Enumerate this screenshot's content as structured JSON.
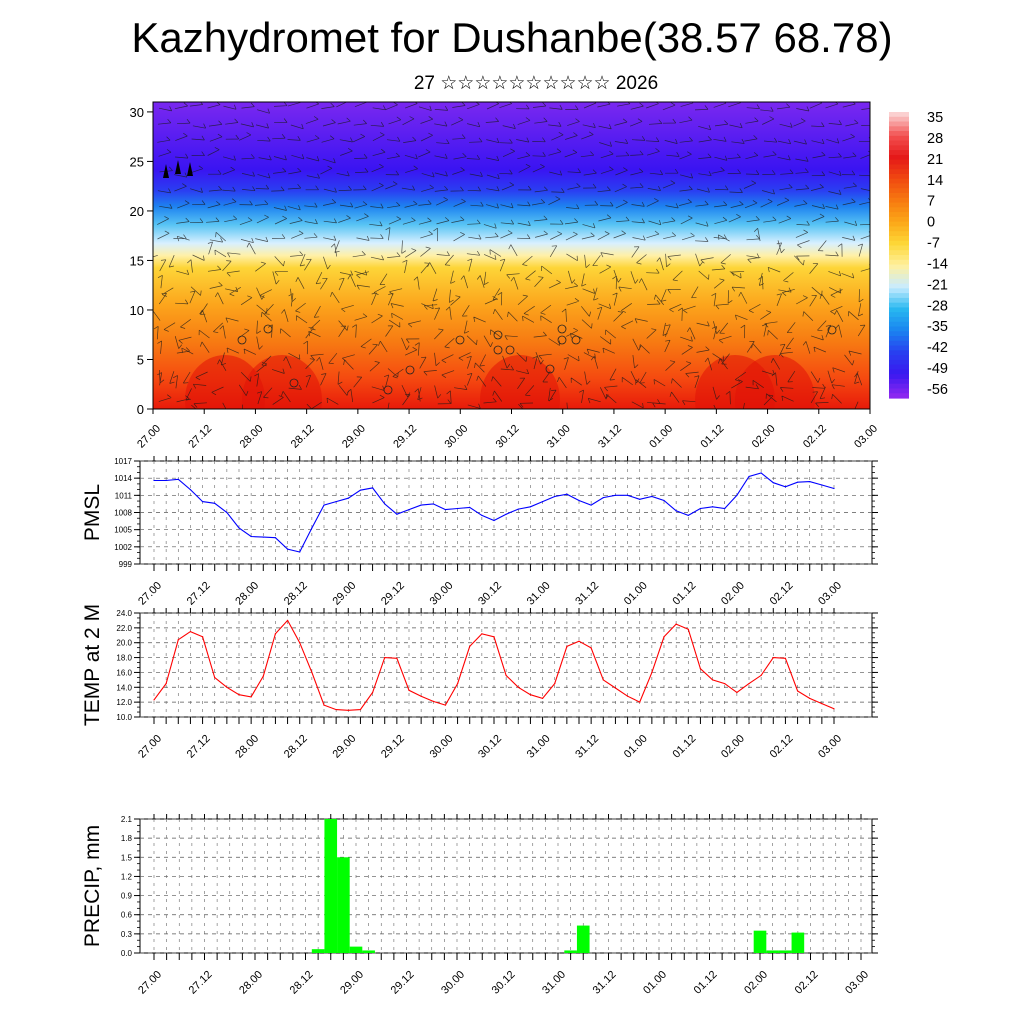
{
  "title": "Kazhydromet for Dushanbe(38.57 68.78)",
  "subtitle": "27 ☆☆☆☆☆☆☆☆☆☆ 2026",
  "time_ticks": [
    "27.00",
    "27.12",
    "28.00",
    "28.12",
    "29.00",
    "29.12",
    "30.00",
    "30.12",
    "31.00",
    "31.12",
    "01.00",
    "01.12",
    "02.00",
    "02.12",
    "03.00"
  ],
  "chart_data": [
    {
      "type": "heatmap",
      "name": "cross-section",
      "xlabel": "",
      "ylabel": "",
      "y_ticks": [
        "0",
        "5",
        "10",
        "15",
        "20",
        "25",
        "30"
      ],
      "ylim": [
        0,
        31
      ],
      "colorbar_labels": [
        "35",
        "28",
        "21",
        "14",
        "7",
        "0",
        "-7",
        "-14",
        "-21",
        "-28",
        "-35",
        "-42",
        "-49",
        "-56"
      ],
      "colorbar_colors": [
        "#fbd0d0",
        "#f25050",
        "#e51818",
        "#f04a10",
        "#f77a10",
        "#fca818",
        "#fdd838",
        "#fff0a0",
        "#c8ecff",
        "#28b8f0",
        "#1a84f0",
        "#2840f0",
        "#3a18f0",
        "#8a28f0"
      ]
    },
    {
      "type": "line",
      "name": "PMSL",
      "ylabel": "PMSL",
      "y_ticks": [
        "1017",
        "1014",
        "1011",
        "1008",
        "1005",
        "1002",
        "999"
      ],
      "ylim": [
        999,
        1017
      ],
      "color": "#0000ff",
      "values": [
        1013.6,
        1013.6,
        1013.8,
        1012,
        1009.9,
        1009.6,
        1008,
        1005.3,
        1003.8,
        1003.7,
        1003.6,
        1001.6,
        1001.1,
        1005.3,
        1009.3,
        1009.9,
        1010.5,
        1011.9,
        1012.3,
        1009.5,
        1007.7,
        1008.5,
        1009.3,
        1009.5,
        1008.5,
        1008.7,
        1008.9,
        1007.5,
        1006.6,
        1007.7,
        1008.6,
        1009,
        1009.9,
        1010.8,
        1011.2,
        1010.1,
        1009.3,
        1010.6,
        1011,
        1011,
        1010.3,
        1010.8,
        1010.1,
        1008.3,
        1007.5,
        1008.7,
        1009,
        1008.7,
        1011,
        1014.3,
        1014.9,
        1013.2,
        1012.5,
        1013.3,
        1013.4,
        1012.8,
        1012.2
      ]
    },
    {
      "type": "line",
      "name": "TEMP at 2 M",
      "ylabel": "TEMP at 2 M",
      "y_ticks": [
        "24.0",
        "22.0",
        "20.0",
        "18.0",
        "16.0",
        "14.0",
        "12.0",
        "10.0"
      ],
      "ylim": [
        10,
        24
      ],
      "color": "#ff0000",
      "values": [
        12.3,
        14.5,
        20.4,
        21.5,
        20.8,
        15.3,
        14,
        13,
        12.7,
        15.5,
        21.2,
        23,
        20,
        16,
        11.6,
        11,
        10.9,
        11,
        13.3,
        18,
        17.9,
        13.6,
        12.8,
        12.1,
        11.6,
        14.5,
        19.5,
        21.2,
        20.8,
        15.6,
        14,
        13,
        12.5,
        14.5,
        19.5,
        20.2,
        19.3,
        15,
        13.9,
        12.8,
        12,
        16,
        20.8,
        22.5,
        21.8,
        16.5,
        15,
        14.5,
        13.3,
        14.5,
        15.6,
        18,
        17.9,
        13.5,
        12.5,
        11.8,
        11.1
      ]
    },
    {
      "type": "bar",
      "name": "PRECIP, mm",
      "ylabel": "PRECIP, mm",
      "y_ticks": [
        "2.1",
        "1.8",
        "1.5",
        "1.2",
        "0.9",
        "0.6",
        "0.3",
        "0.0"
      ],
      "ylim": [
        0,
        2.1
      ],
      "color": "#00ff00",
      "values": [
        0,
        0,
        0,
        0,
        0,
        0,
        0,
        0,
        0,
        0,
        0,
        0,
        0,
        0.06,
        2.1,
        1.5,
        0.1,
        0.04,
        0,
        0,
        0,
        0,
        0,
        0,
        0,
        0,
        0,
        0,
        0,
        0,
        0,
        0,
        0,
        0.04,
        0.43,
        0,
        0,
        0,
        0,
        0,
        0,
        0,
        0,
        0,
        0,
        0,
        0,
        0,
        0.35,
        0.04,
        0.04,
        0.32,
        0,
        0,
        0,
        0,
        0
      ]
    }
  ]
}
